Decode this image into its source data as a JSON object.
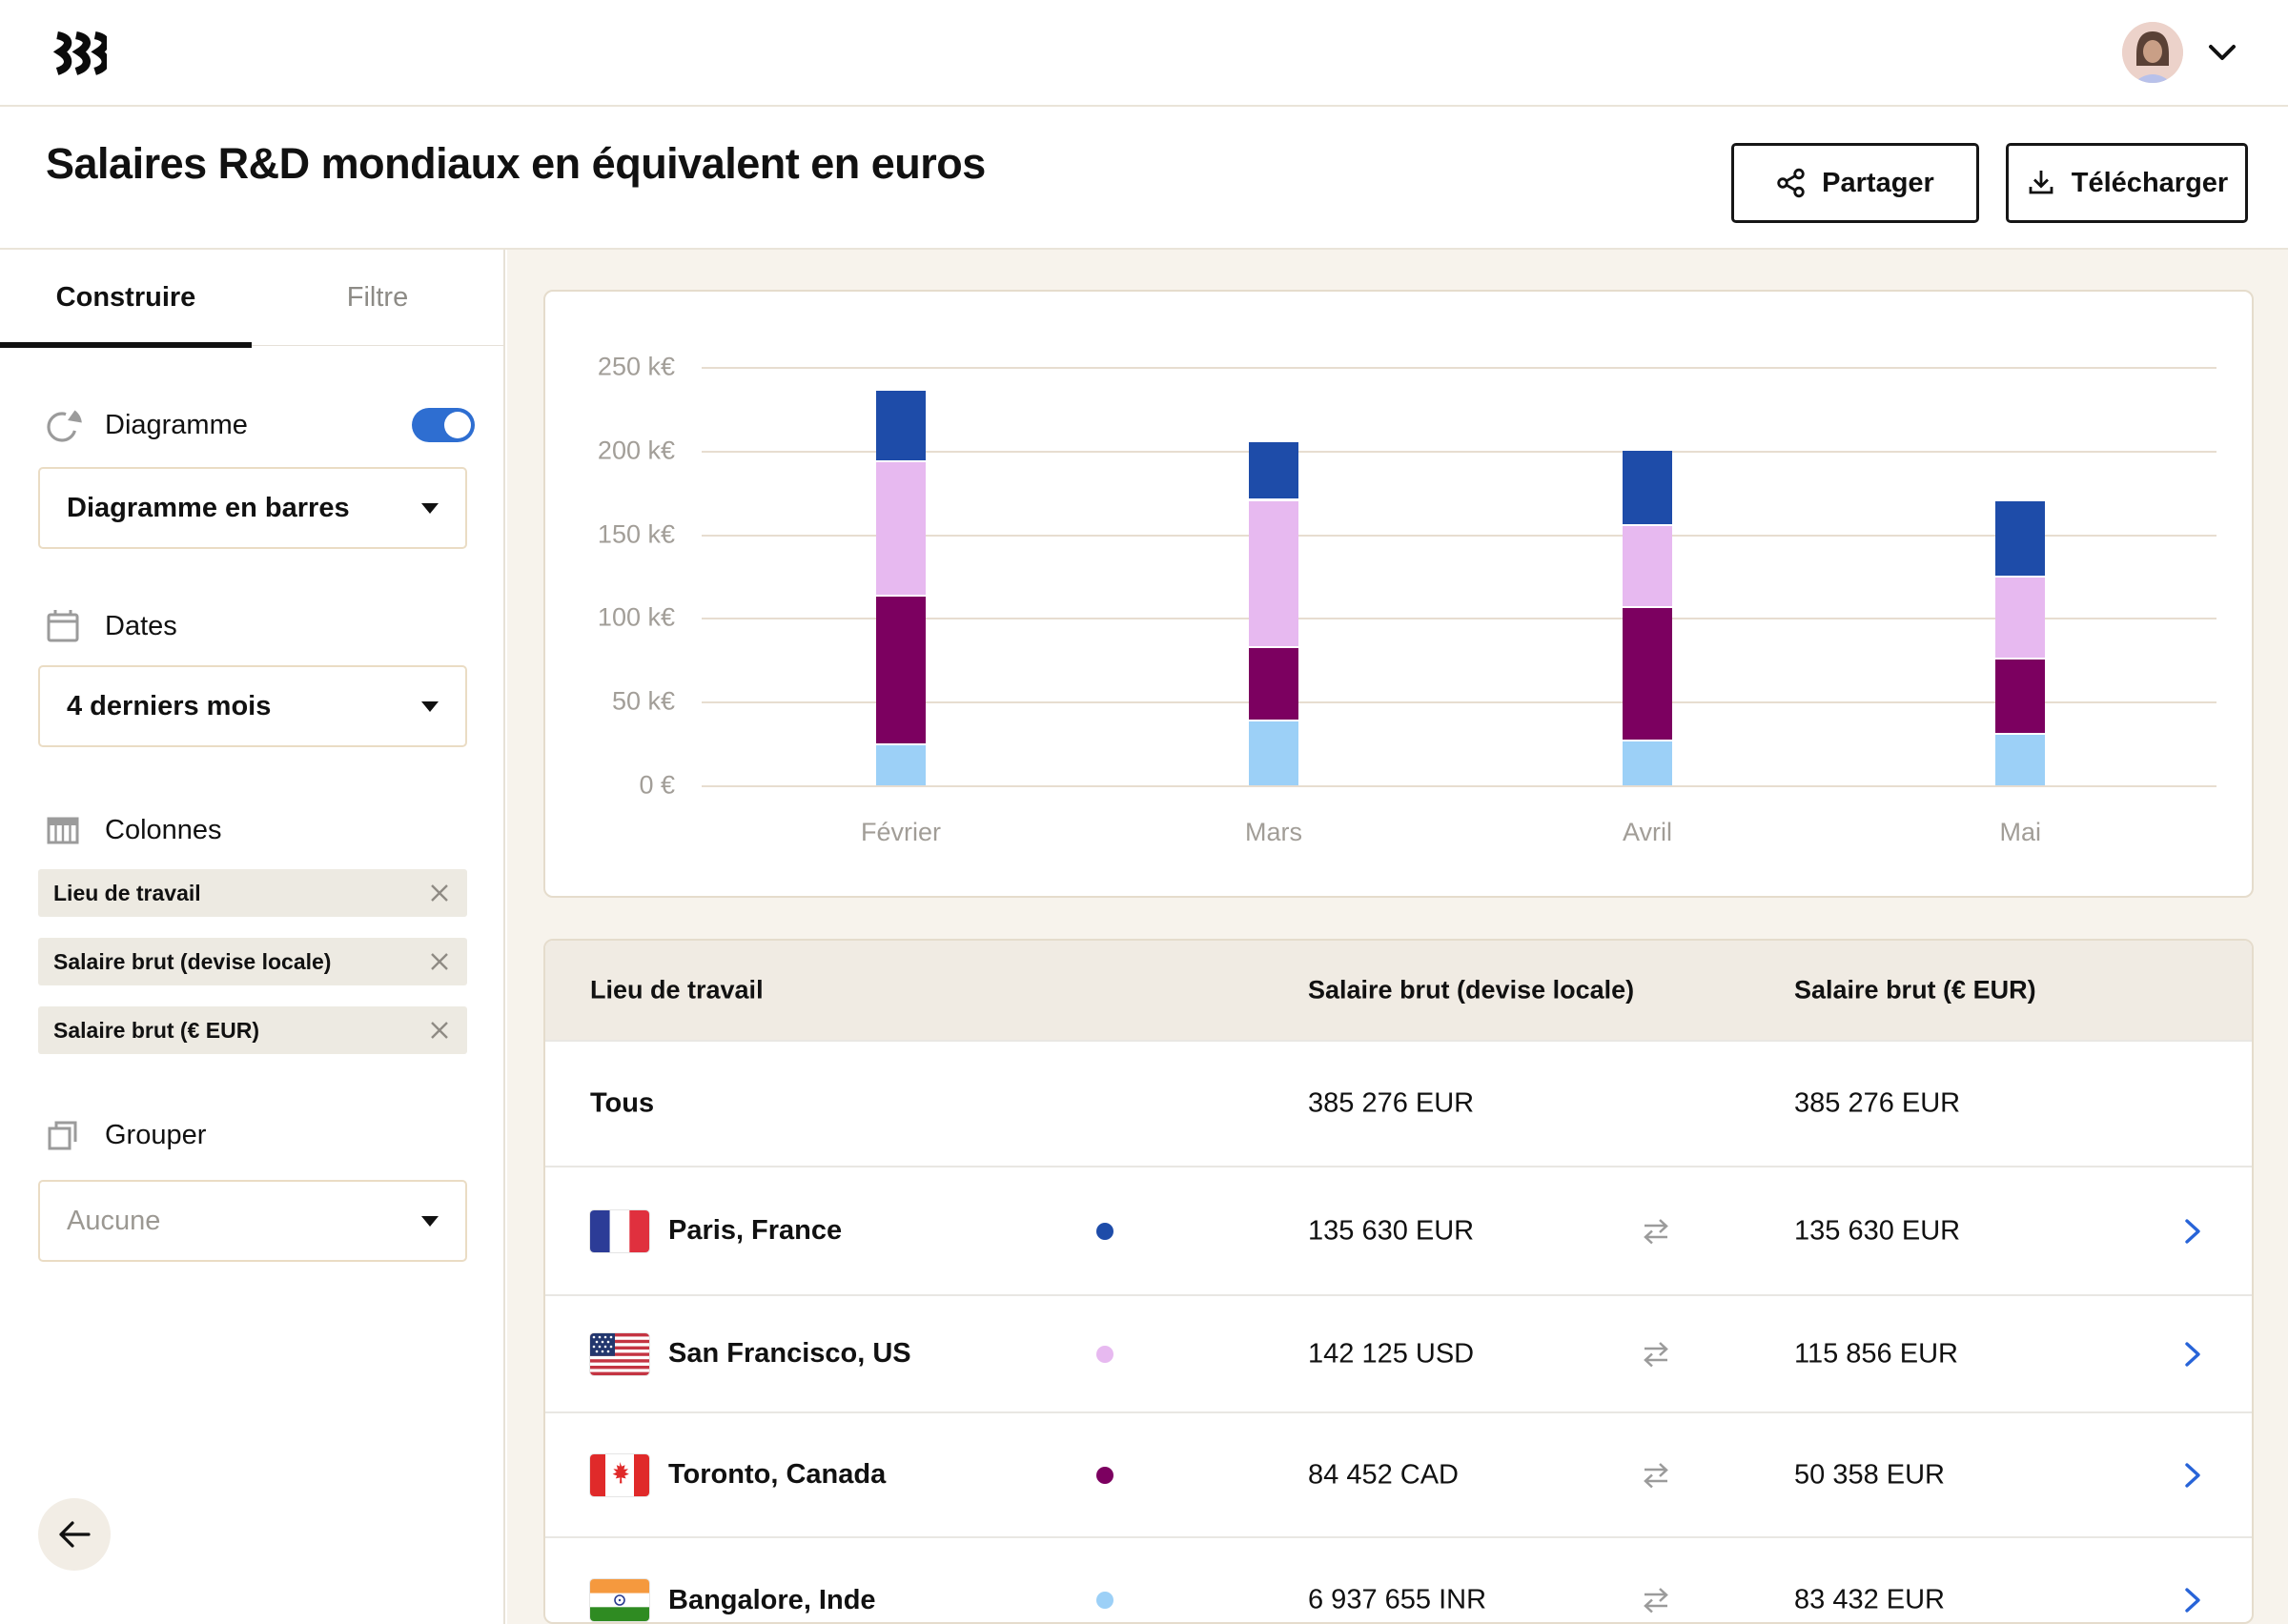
{
  "header": {
    "title": "Salaires R&D mondiaux en équivalent en euros",
    "share_label": "Partager",
    "download_label": "Télécharger"
  },
  "sidebar": {
    "tabs": [
      {
        "label": "Construire",
        "active": true
      },
      {
        "label": "Filtre",
        "active": false
      }
    ],
    "diagram": {
      "label": "Diagramme",
      "enabled": true,
      "type_value": "Diagramme en barres"
    },
    "dates": {
      "label": "Dates",
      "value": "4 derniers mois"
    },
    "columns": {
      "label": "Colonnes",
      "chips": [
        "Lieu de travail",
        "Salaire brut (devise locale)",
        "Salaire brut (€ EUR)"
      ]
    },
    "group": {
      "label": "Grouper",
      "placeholder": "Aucune"
    }
  },
  "chart_data": {
    "type": "bar",
    "stacked": true,
    "categories": [
      "Février",
      "Mars",
      "Avril",
      "Mai"
    ],
    "unit": "k€",
    "series": [
      {
        "name": "Bangalore, Inde",
        "color": "#9cd0f7",
        "values": [
          24,
          38,
          26,
          30
        ]
      },
      {
        "name": "Toronto, Canada",
        "color": "#7c0060",
        "values": [
          89,
          44,
          80,
          45
        ]
      },
      {
        "name": "San Francisco, US",
        "color": "#e7b9f0",
        "values": [
          80,
          88,
          49,
          49
        ]
      },
      {
        "name": "Paris, France",
        "color": "#1e4ca9",
        "values": [
          43,
          35,
          45,
          46
        ]
      }
    ],
    "totals_k": [
      236,
      205,
      200,
      170
    ],
    "ylim": [
      0,
      250
    ],
    "yticks": [
      "250 k€",
      "200 k€",
      "150 k€",
      "100 k€",
      "50 k€",
      "0 €"
    ],
    "grid": true,
    "legend": "none"
  },
  "table": {
    "columns": [
      "Lieu de travail",
      "Salaire brut (devise locale)",
      "Salaire brut (€ EUR)"
    ],
    "rows": [
      {
        "location": "Tous",
        "flag": null,
        "dot_color": null,
        "local_salary": "385 276 EUR",
        "eur_salary": "385 276 EUR"
      },
      {
        "location": "Paris, France",
        "flag": "france",
        "dot_color": "#1e4ca9",
        "local_salary": "135 630 EUR",
        "eur_salary": "135 630 EUR"
      },
      {
        "location": "San Francisco, US",
        "flag": "united-states",
        "dot_color": "#e7b9f0",
        "local_salary": "142 125 USD",
        "eur_salary": "115 856 EUR"
      },
      {
        "location": "Toronto, Canada",
        "flag": "canada",
        "dot_color": "#7c0060",
        "local_salary": "84 452 CAD",
        "eur_salary": "50 358 EUR"
      },
      {
        "location": "Bangalore, Inde",
        "flag": "india",
        "dot_color": "#9cd0f7",
        "local_salary": "6 937 655 INR",
        "eur_salary": "83 432 EUR"
      }
    ]
  },
  "colors": {
    "accent_blue": "#2e6ed1",
    "chevron_blue": "#2864d8",
    "background_beige": "#f7f3ec",
    "card_border": "#e5dccc",
    "gridline": "#e7ddd0"
  }
}
